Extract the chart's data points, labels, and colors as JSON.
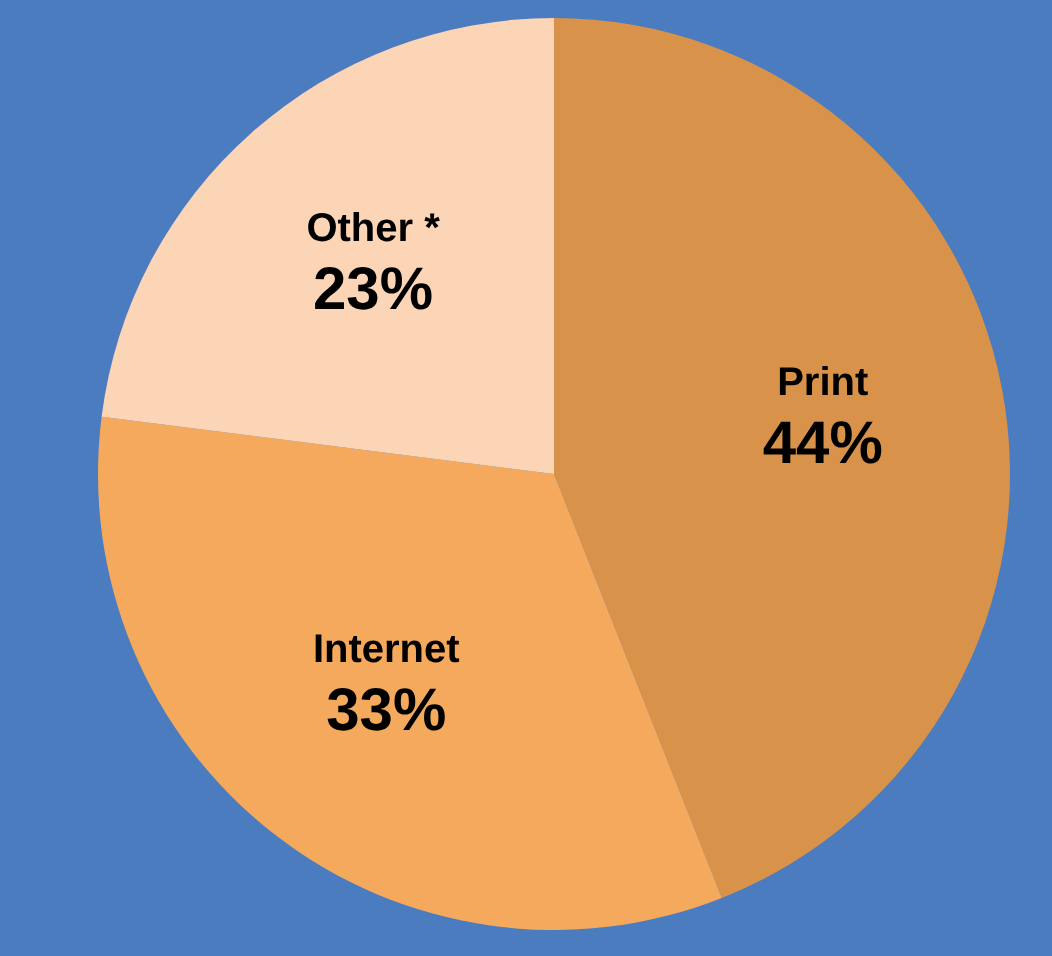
{
  "chart_data": {
    "type": "pie",
    "categories": [
      "Print",
      "Internet",
      "Other *"
    ],
    "values": [
      44,
      33,
      23
    ],
    "colors": [
      "#d9924a",
      "#f5a95c",
      "#fcd4b6"
    ],
    "value_labels": [
      "44%",
      "33%",
      "23%"
    ]
  }
}
